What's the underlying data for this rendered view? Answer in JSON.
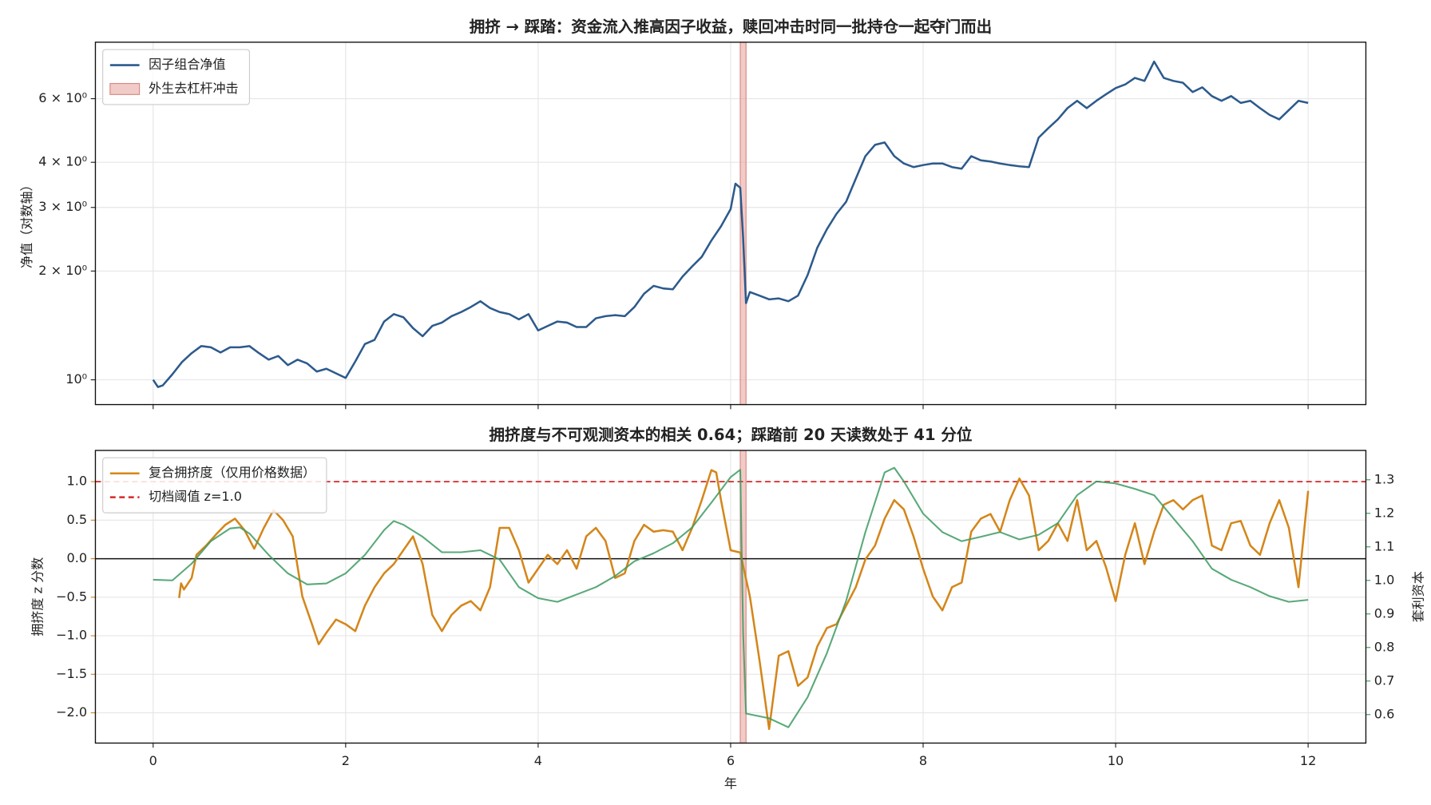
{
  "chart_data": [
    {
      "type": "line",
      "title": "拥挤 → 踩踏：资金流入推高因子收益，赎回冲击时同一批持仓一起夺门而出",
      "ylabel": "净值（对数轴）",
      "yscale": "log",
      "grid": true,
      "legend": "upper left",
      "show_xtick_labels": false,
      "xlim": [
        -0.6,
        12.6
      ],
      "xticks": [
        0,
        2,
        4,
        6,
        8,
        10,
        12
      ],
      "ylim": [
        0.854,
        8.6
      ],
      "yticks": [
        {
          "value": 1,
          "label": "10⁰"
        },
        {
          "value": 2,
          "label": "2 × 10⁰"
        },
        {
          "value": 3,
          "label": "3 × 10⁰"
        },
        {
          "value": 4,
          "label": "4 × 10⁰"
        },
        {
          "value": 6,
          "label": "6 × 10⁰"
        }
      ],
      "shock": {
        "name": "外生去杠杆冲击",
        "range": [
          6.1,
          6.16
        ],
        "color": "#e8a9a3"
      },
      "series": [
        {
          "name": "因子组合净值",
          "color": "#2c5a8c",
          "x": [
            0,
            0.05,
            0.1,
            0.2,
            0.3,
            0.4,
            0.5,
            0.6,
            0.7,
            0.8,
            0.9,
            1.0,
            1.1,
            1.2,
            1.3,
            1.4,
            1.5,
            1.6,
            1.7,
            1.8,
            1.9,
            2.0,
            2.1,
            2.2,
            2.3,
            2.4,
            2.5,
            2.6,
            2.7,
            2.8,
            2.9,
            3.0,
            3.1,
            3.2,
            3.3,
            3.4,
            3.5,
            3.6,
            3.7,
            3.8,
            3.9,
            4.0,
            4.1,
            4.2,
            4.3,
            4.4,
            4.5,
            4.6,
            4.7,
            4.8,
            4.9,
            5.0,
            5.1,
            5.2,
            5.3,
            5.4,
            5.5,
            5.6,
            5.7,
            5.8,
            5.9,
            6.0,
            6.05,
            6.1,
            6.13,
            6.16,
            6.2,
            6.3,
            6.4,
            6.5,
            6.6,
            6.7,
            6.8,
            6.9,
            7.0,
            7.1,
            7.2,
            7.3,
            7.4,
            7.5,
            7.6,
            7.7,
            7.8,
            7.9,
            8.0,
            8.1,
            8.2,
            8.3,
            8.4,
            8.5,
            8.6,
            8.7,
            8.8,
            8.9,
            9.0,
            9.1,
            9.2,
            9.3,
            9.4,
            9.5,
            9.6,
            9.7,
            9.8,
            9.9,
            10.0,
            10.1,
            10.2,
            10.3,
            10.4,
            10.5,
            10.6,
            10.7,
            10.8,
            10.9,
            11.0,
            11.1,
            11.2,
            11.3,
            11.4,
            11.5,
            11.6,
            11.7,
            11.8,
            11.9,
            12.0
          ],
          "values": [
            1.0,
            0.955,
            0.965,
            1.036,
            1.12,
            1.185,
            1.24,
            1.23,
            1.19,
            1.23,
            1.23,
            1.24,
            1.185,
            1.137,
            1.164,
            1.098,
            1.137,
            1.11,
            1.054,
            1.073,
            1.042,
            1.012,
            1.124,
            1.256,
            1.29,
            1.45,
            1.52,
            1.49,
            1.39,
            1.32,
            1.41,
            1.44,
            1.5,
            1.54,
            1.59,
            1.65,
            1.58,
            1.54,
            1.52,
            1.47,
            1.52,
            1.37,
            1.41,
            1.45,
            1.44,
            1.4,
            1.4,
            1.48,
            1.5,
            1.51,
            1.5,
            1.59,
            1.73,
            1.82,
            1.79,
            1.78,
            1.93,
            2.06,
            2.19,
            2.43,
            2.66,
            2.97,
            3.49,
            3.4,
            2.46,
            1.63,
            1.75,
            1.71,
            1.67,
            1.68,
            1.65,
            1.71,
            1.95,
            2.32,
            2.61,
            2.88,
            3.11,
            3.6,
            4.16,
            4.47,
            4.54,
            4.16,
            3.97,
            3.88,
            3.93,
            3.97,
            3.97,
            3.88,
            3.84,
            4.16,
            4.05,
            4.02,
            3.97,
            3.93,
            3.9,
            3.88,
            4.68,
            4.97,
            5.26,
            5.65,
            5.92,
            5.65,
            5.92,
            6.17,
            6.42,
            6.57,
            6.85,
            6.72,
            7.6,
            6.85,
            6.72,
            6.64,
            6.26,
            6.45,
            6.1,
            5.92,
            6.1,
            5.84,
            5.92,
            5.65,
            5.41,
            5.26,
            5.58,
            5.92,
            5.84
          ]
        }
      ]
    },
    {
      "type": "line",
      "title": "拥挤度与不可观测资本的相关 0.64；踩踏前 20 天读数处于 41 分位",
      "ylabel": "拥挤度 z 分数",
      "y2label": "套利资本",
      "xlabel": "年",
      "grid": true,
      "legend": "upper left",
      "show_xtick_labels": true,
      "xlim": [
        -0.6,
        12.6
      ],
      "xticks": [
        0,
        2,
        4,
        6,
        8,
        10,
        12
      ],
      "ylim": [
        -2.393,
        1.405
      ],
      "yticks": [
        {
          "value": -2.0,
          "label": "−2.0"
        },
        {
          "value": -1.5,
          "label": "−1.5"
        },
        {
          "value": -1.0,
          "label": "−1.0"
        },
        {
          "value": -0.5,
          "label": "−0.5"
        },
        {
          "value": 0.0,
          "label": "0.0"
        },
        0.5,
        {
          "value": 1.0,
          "label": "1.0"
        }
      ],
      "y2lim": [
        0.515,
        1.3875
      ],
      "y2ticks": [
        0.6,
        0.7,
        0.8,
        0.9,
        {
          "value": 1.0,
          "label": "1.0"
        },
        1.1,
        1.2,
        1.3
      ],
      "zero_line": 0,
      "threshold": {
        "name": "切档阈值 z=1.0",
        "value": 1.0,
        "color": "#d62728"
      },
      "shock": {
        "range": [
          6.1,
          6.16
        ],
        "color": "#e8a9a3"
      },
      "series": [
        {
          "name": "复合拥挤度（仅用价格数据）",
          "color": "#d4861a",
          "x": [
            0.27,
            0.29,
            0.32,
            0.4,
            0.45,
            0.55,
            0.65,
            0.75,
            0.85,
            0.95,
            1.05,
            1.15,
            1.25,
            1.35,
            1.45,
            1.55,
            1.65,
            1.72,
            1.8,
            1.9,
            2.0,
            2.1,
            2.2,
            2.3,
            2.4,
            2.5,
            2.6,
            2.7,
            2.8,
            2.9,
            3.0,
            3.1,
            3.2,
            3.3,
            3.4,
            3.5,
            3.6,
            3.7,
            3.8,
            3.9,
            4.0,
            4.1,
            4.2,
            4.3,
            4.4,
            4.5,
            4.6,
            4.7,
            4.8,
            4.9,
            5.0,
            5.1,
            5.2,
            5.3,
            5.4,
            5.5,
            5.6,
            5.7,
            5.8,
            5.85,
            5.9,
            6.0,
            6.1,
            6.2,
            6.3,
            6.4,
            6.5,
            6.6,
            6.7,
            6.8,
            6.9,
            7.0,
            7.1,
            7.2,
            7.3,
            7.4,
            7.5,
            7.6,
            7.7,
            7.8,
            7.9,
            8.0,
            8.1,
            8.2,
            8.3,
            8.4,
            8.5,
            8.6,
            8.7,
            8.8,
            8.9,
            9.0,
            9.1,
            9.2,
            9.3,
            9.4,
            9.5,
            9.6,
            9.7,
            9.8,
            9.9,
            10.0,
            10.1,
            10.2,
            10.3,
            10.4,
            10.5,
            10.6,
            10.7,
            10.8,
            10.9,
            11.0,
            11.1,
            11.2,
            11.3,
            11.4,
            11.5,
            11.6,
            11.7,
            11.8,
            11.9,
            12.0
          ],
          "values": [
            -0.51,
            -0.32,
            -0.4,
            -0.25,
            0.05,
            0.17,
            0.31,
            0.44,
            0.52,
            0.37,
            0.13,
            0.4,
            0.63,
            0.5,
            0.29,
            -0.49,
            -0.85,
            -1.11,
            -0.96,
            -0.79,
            -0.85,
            -0.94,
            -0.61,
            -0.37,
            -0.19,
            -0.07,
            0.11,
            0.29,
            -0.07,
            -0.73,
            -0.94,
            -0.73,
            -0.61,
            -0.55,
            -0.67,
            -0.37,
            0.4,
            0.4,
            0.11,
            -0.31,
            -0.13,
            0.05,
            -0.07,
            0.11,
            -0.13,
            0.29,
            0.4,
            0.23,
            -0.25,
            -0.19,
            0.23,
            0.44,
            0.35,
            0.37,
            0.35,
            0.11,
            0.4,
            0.76,
            1.15,
            1.12,
            0.76,
            0.11,
            0.08,
            -0.49,
            -1.32,
            -2.21,
            -1.26,
            -1.2,
            -1.65,
            -1.54,
            -1.14,
            -0.9,
            -0.85,
            -0.61,
            -0.37,
            -0.01,
            0.17,
            0.52,
            0.76,
            0.64,
            0.29,
            -0.13,
            -0.49,
            -0.67,
            -0.37,
            -0.31,
            0.35,
            0.52,
            0.58,
            0.35,
            0.76,
            1.04,
            0.82,
            0.11,
            0.23,
            0.46,
            0.23,
            0.76,
            0.11,
            0.23,
            -0.11,
            -0.55,
            0.05,
            0.46,
            -0.07,
            0.35,
            0.7,
            0.76,
            0.64,
            0.76,
            0.82,
            0.17,
            0.11,
            0.46,
            0.49,
            0.17,
            0.05,
            0.46,
            0.76,
            0.4,
            -0.37,
            0.88
          ]
        },
        {
          "color": "#3d9a62",
          "axis": "y2",
          "x": [
            0,
            0.2,
            0.4,
            0.6,
            0.8,
            0.9,
            1.0,
            1.2,
            1.4,
            1.6,
            1.8,
            2.0,
            2.2,
            2.4,
            2.5,
            2.6,
            2.8,
            3.0,
            3.2,
            3.4,
            3.6,
            3.8,
            4.0,
            4.2,
            4.4,
            4.6,
            4.8,
            5.0,
            5.2,
            5.4,
            5.6,
            5.8,
            6.0,
            6.1,
            6.13,
            6.16,
            6.4,
            6.6,
            6.8,
            7.0,
            7.2,
            7.4,
            7.6,
            7.7,
            7.8,
            8.0,
            8.2,
            8.4,
            8.6,
            8.8,
            9.0,
            9.2,
            9.4,
            9.6,
            9.8,
            10.0,
            10.2,
            10.4,
            10.6,
            10.8,
            11.0,
            11.2,
            11.4,
            11.6,
            11.8,
            12.0
          ],
          "values": [
            1.002,
            1.0,
            1.05,
            1.117,
            1.155,
            1.158,
            1.14,
            1.076,
            1.021,
            0.988,
            0.991,
            1.021,
            1.076,
            1.15,
            1.177,
            1.166,
            1.13,
            1.084,
            1.084,
            1.09,
            1.062,
            0.98,
            0.947,
            0.936,
            0.958,
            0.98,
            1.013,
            1.057,
            1.081,
            1.111,
            1.158,
            1.232,
            1.308,
            1.33,
            0.843,
            0.603,
            0.589,
            0.562,
            0.652,
            0.783,
            0.939,
            1.144,
            1.322,
            1.336,
            1.295,
            1.199,
            1.144,
            1.117,
            1.13,
            1.144,
            1.122,
            1.136,
            1.171,
            1.254,
            1.295,
            1.289,
            1.273,
            1.254,
            1.185,
            1.117,
            1.035,
            1.002,
            0.98,
            0.953,
            0.936,
            0.942
          ]
        }
      ]
    }
  ]
}
